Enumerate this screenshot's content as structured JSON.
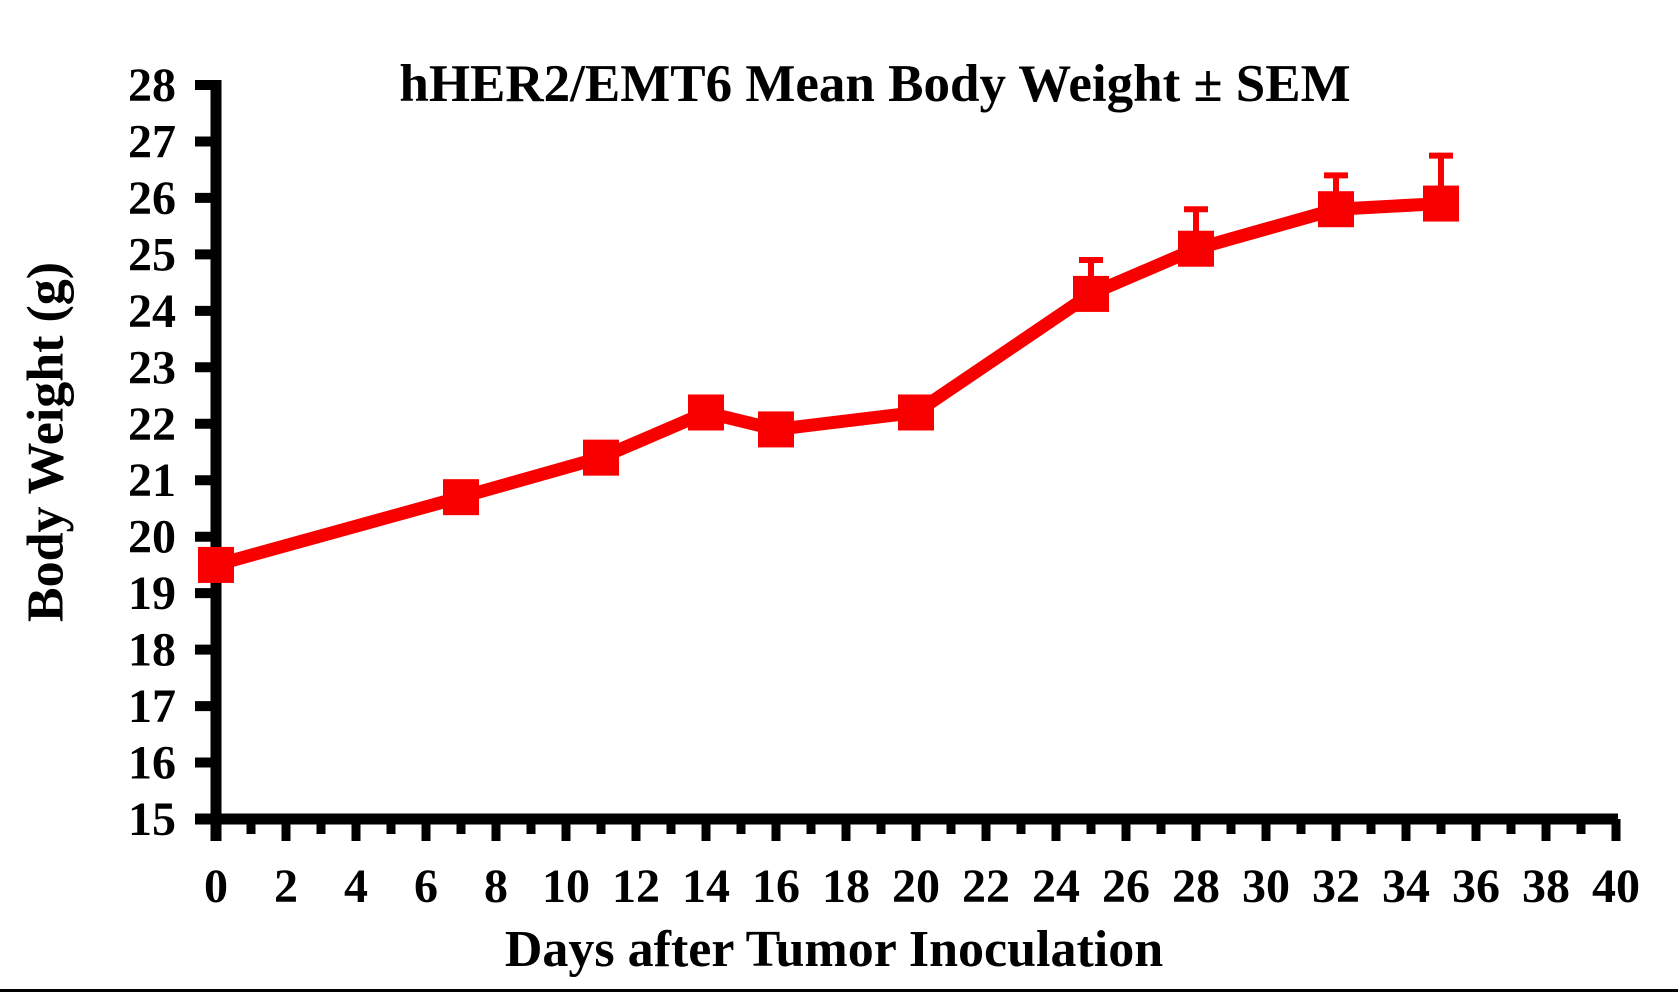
{
  "chart_data": {
    "type": "line",
    "title": "hHER2/EMT6 Mean Body Weight ± SEM",
    "xlabel": "Days after Tumor Inoculation",
    "ylabel": "Body Weight (g)",
    "xlim": [
      0,
      40
    ],
    "ylim": [
      15,
      28
    ],
    "x_major_ticks": [
      0,
      2,
      4,
      6,
      8,
      10,
      12,
      14,
      16,
      18,
      20,
      22,
      24,
      26,
      28,
      30,
      32,
      34,
      36,
      38,
      40
    ],
    "x_minor_tick_step": 1,
    "y_ticks": [
      15,
      16,
      17,
      18,
      19,
      20,
      21,
      22,
      23,
      24,
      25,
      26,
      27,
      28
    ],
    "grid": false,
    "legend": null,
    "axis_color": "#000000",
    "series": [
      {
        "name": "hHER2/EMT6 mean body weight",
        "color": "#f80000",
        "marker": "square",
        "x": [
          0,
          7,
          11,
          14,
          16,
          20,
          25,
          28,
          32,
          35
        ],
        "y": [
          19.5,
          20.7,
          21.4,
          22.2,
          21.9,
          22.2,
          24.3,
          25.1,
          25.8,
          25.9
        ],
        "sem_upper": [
          0,
          0,
          0,
          0,
          0,
          0,
          0.6,
          0.7,
          0.6,
          0.85
        ]
      }
    ]
  }
}
